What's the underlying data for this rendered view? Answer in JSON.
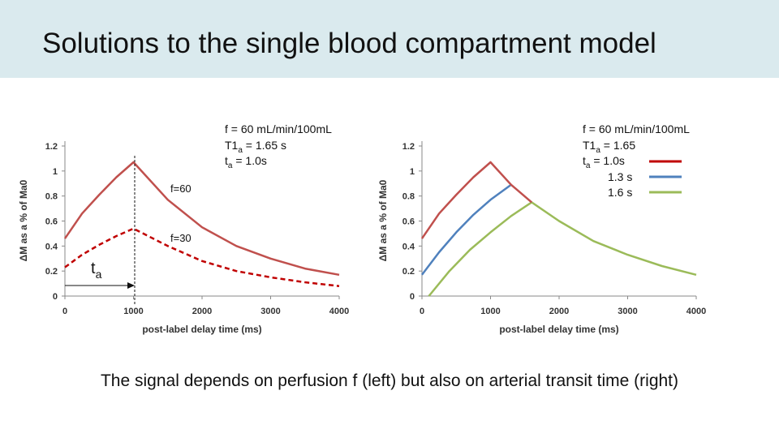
{
  "slide": {
    "title": "Solutions to the single blood compartment model",
    "caption": "The signal depends on perfusion f (left) but also on arterial transit time (right)"
  },
  "chart_data": [
    {
      "type": "line",
      "xlabel": "post-label delay time (ms)",
      "ylabel": "ΔM as a % of Ma0",
      "xlim": [
        0,
        4000
      ],
      "ylim": [
        0,
        1.2
      ],
      "xticks": [
        "0",
        "1000",
        "2000",
        "3000",
        "4000"
      ],
      "yticks": [
        "0",
        "0.2",
        "0.4",
        "0.6",
        "0.8",
        "1",
        "1.2"
      ],
      "params": {
        "f": "f = 60 mL/min/100mL",
        "t1_main": "T1",
        "t1_sub": "a",
        "t1_val": " = 1.65 s",
        "ta_main": "t",
        "ta_sub": "a",
        "ta_val": " = 1.0s"
      },
      "annotation": {
        "ta_main": "t",
        "ta_sub": "a"
      },
      "series": [
        {
          "name": "f=60",
          "color": "#c0504d",
          "dashed": false,
          "x": [
            0,
            250,
            500,
            750,
            1000,
            1500,
            2000,
            2500,
            3000,
            3500,
            4000
          ],
          "values": [
            0.46,
            0.66,
            0.81,
            0.95,
            1.07,
            0.77,
            0.55,
            0.4,
            0.3,
            0.22,
            0.17
          ]
        },
        {
          "name": "f=30",
          "color": "#c00000",
          "dashed": true,
          "x": [
            0,
            250,
            500,
            750,
            1000,
            1500,
            2000,
            2500,
            3000,
            3500,
            4000
          ],
          "values": [
            0.23,
            0.33,
            0.41,
            0.48,
            0.54,
            0.4,
            0.28,
            0.2,
            0.15,
            0.11,
            0.08
          ]
        }
      ]
    },
    {
      "type": "line",
      "xlabel": "post-label delay time (ms)",
      "ylabel": "ΔM as a % of Ma0",
      "xlim": [
        0,
        4000
      ],
      "ylim": [
        0,
        1.2
      ],
      "xticks": [
        "0",
        "1000",
        "2000",
        "3000",
        "4000"
      ],
      "yticks": [
        "0",
        "0.2",
        "0.4",
        "0.6",
        "0.8",
        "1",
        "1.2"
      ],
      "params": {
        "f": "f = 60 mL/min/100mL",
        "t1_main": "T1",
        "t1_sub": "a",
        "t1_val": " = 1.65",
        "ta_main": "t",
        "ta_sub": "a",
        "ta_val": " = 1.0s"
      },
      "series": [
        {
          "name": "1.0s",
          "legend": "",
          "color": "#c0504d",
          "x": [
            0,
            250,
            500,
            750,
            1000,
            1300,
            1600
          ],
          "values": [
            0.46,
            0.66,
            0.81,
            0.95,
            1.07,
            0.89,
            0.75
          ]
        },
        {
          "name": "1.3 s",
          "legend": "1.3 s",
          "color": "#4f81bd",
          "x": [
            0,
            250,
            500,
            750,
            1000,
            1300
          ],
          "values": [
            0.17,
            0.35,
            0.51,
            0.65,
            0.77,
            0.89
          ]
        },
        {
          "name": "1.6 s",
          "legend": "1.6 s",
          "color": "#9bbb59",
          "x": [
            100,
            400,
            700,
            1000,
            1300,
            1600,
            2000,
            2500,
            3000,
            3500,
            4000
          ],
          "values": [
            0.0,
            0.2,
            0.37,
            0.51,
            0.64,
            0.75,
            0.6,
            0.44,
            0.33,
            0.24,
            0.17
          ]
        }
      ]
    }
  ]
}
